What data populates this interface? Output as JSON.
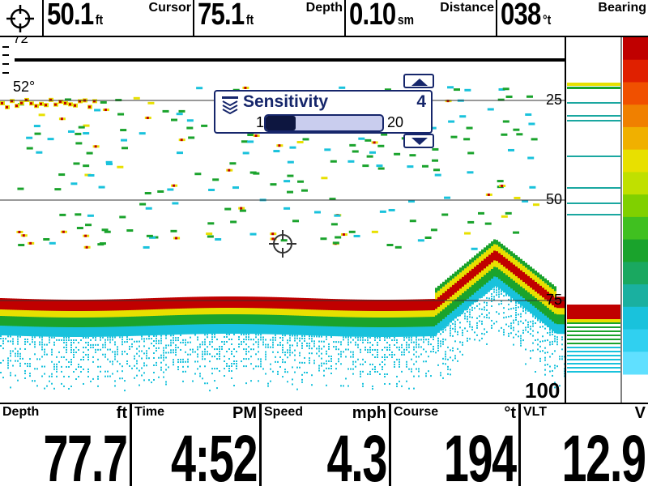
{
  "topbar": {
    "icon": "target-crosshair-icon",
    "cursor": {
      "value": "50.1",
      "unit": "ft",
      "label": "Cursor"
    },
    "depth": {
      "value": "75.1",
      "unit": "ft",
      "label": "Depth"
    },
    "distance": {
      "value": "0.10",
      "unit": "sm",
      "label": "Distance"
    },
    "bearing": {
      "value": "038",
      "unit": "°t",
      "label": "Bearing"
    }
  },
  "sonar": {
    "temp_top": "72",
    "temp_label": "52°",
    "depth_scale": [
      "25",
      "50",
      "75",
      "100"
    ],
    "cursor_icon": "crosshair-cursor-icon",
    "colors": {
      "background": "#ffffff",
      "bottom_return": "#c00000",
      "strong": "#e8e000",
      "medium": "#1aa32c",
      "weak": "#19c2dc"
    }
  },
  "sensitivity": {
    "title": "Sensitivity",
    "value": "4",
    "min": "1",
    "max": "20",
    "level": 4,
    "icon": "sensitivity-icon"
  },
  "bottombar": {
    "depth": {
      "label": "Depth",
      "unit": "ft",
      "value": "77.7"
    },
    "time": {
      "label": "Time",
      "unit": "PM",
      "value": "4:52"
    },
    "speed": {
      "label": "Speed",
      "unit": "mph",
      "value": "4.3"
    },
    "course": {
      "label": "Course",
      "unit": "°t",
      "value": "194"
    },
    "vlt": {
      "label": "VLT",
      "unit": "V",
      "value": "12.9"
    }
  }
}
